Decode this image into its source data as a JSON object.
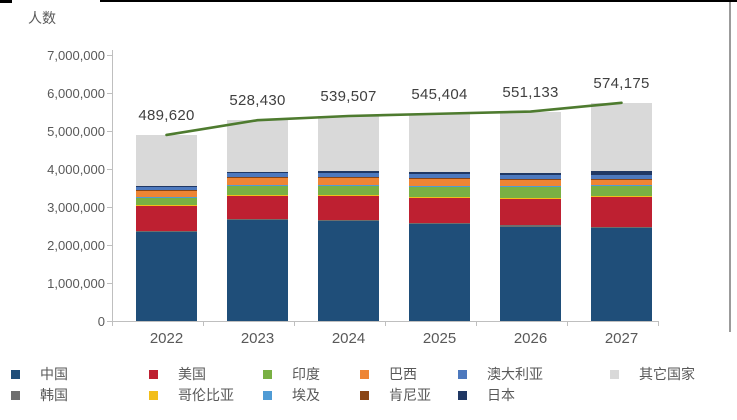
{
  "chart_data": {
    "type": "bar",
    "subtype": "stacked-column-with-line",
    "title": "",
    "ylabel": "人数",
    "xlabel": "",
    "categories": [
      "2022",
      "2023",
      "2024",
      "2025",
      "2026",
      "2027"
    ],
    "y_axis": {
      "min": 0,
      "max": 7000000,
      "tick_step": 1000000,
      "ticks": [
        "0",
        "1,000,000",
        "2,000,000",
        "3,000,000",
        "4,000,000",
        "5,000,000",
        "6,000,000",
        "7,000,000"
      ]
    },
    "grid": "off",
    "legend_position": "bottom",
    "series": [
      {
        "name": "中国",
        "color": "#1F4E79",
        "values": [
          2350000,
          2650000,
          2620000,
          2550000,
          2480000,
          2450000
        ]
      },
      {
        "name": "韩国",
        "color": "#6E6E6E",
        "values": [
          30000,
          35000,
          35000,
          35000,
          35000,
          35000
        ]
      },
      {
        "name": "美国",
        "color": "#BE2031",
        "values": [
          650000,
          600000,
          630000,
          660000,
          700000,
          780000
        ]
      },
      {
        "name": "哥伦比亚",
        "color": "#F2BE1A",
        "values": [
          15000,
          18000,
          18000,
          18000,
          20000,
          20000
        ]
      },
      {
        "name": "印度",
        "color": "#79B043",
        "values": [
          210000,
          260000,
          270000,
          280000,
          290000,
          280000
        ]
      },
      {
        "name": "埃及",
        "color": "#4F9BD5",
        "values": [
          15000,
          18000,
          18000,
          20000,
          20000,
          20000
        ]
      },
      {
        "name": "巴西",
        "color": "#EE8534",
        "values": [
          170000,
          190000,
          180000,
          170000,
          160000,
          140000
        ]
      },
      {
        "name": "肯尼亚",
        "color": "#8B4514",
        "values": [
          15000,
          18000,
          18000,
          20000,
          20000,
          20000
        ]
      },
      {
        "name": "澳大利亚",
        "color": "#4D79BE",
        "values": [
          80000,
          100000,
          110000,
          120000,
          120000,
          100000
        ]
      },
      {
        "name": "日本",
        "color": "#203864",
        "values": [
          25000,
          40000,
          50000,
          50000,
          60000,
          90000
        ]
      },
      {
        "name": "其它国家",
        "color": "#D9D9D9",
        "values": [
          1336200,
          1355300,
          1446070,
          1531040,
          1606330,
          1806750
        ]
      }
    ],
    "line": {
      "color": "#4E7B2F",
      "point_labels": [
        "489,620",
        "528,430",
        "539,507",
        "545,404",
        "551,133",
        "574,175"
      ]
    }
  }
}
